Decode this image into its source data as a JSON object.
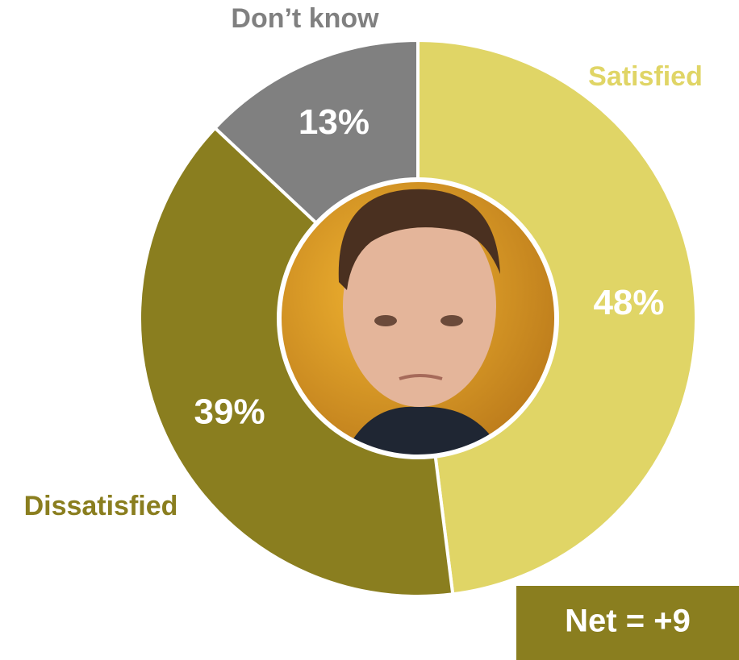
{
  "chart_data": {
    "type": "donut",
    "categories": [
      "Satisfied",
      "Dissatisfied",
      "Don’t know"
    ],
    "values": [
      48,
      39,
      13
    ],
    "value_labels": [
      "48%",
      "39%",
      "13%"
    ],
    "colors": [
      "#e0d566",
      "#8a7e1f",
      "#808080"
    ],
    "annotation": "Net = +9"
  }
}
